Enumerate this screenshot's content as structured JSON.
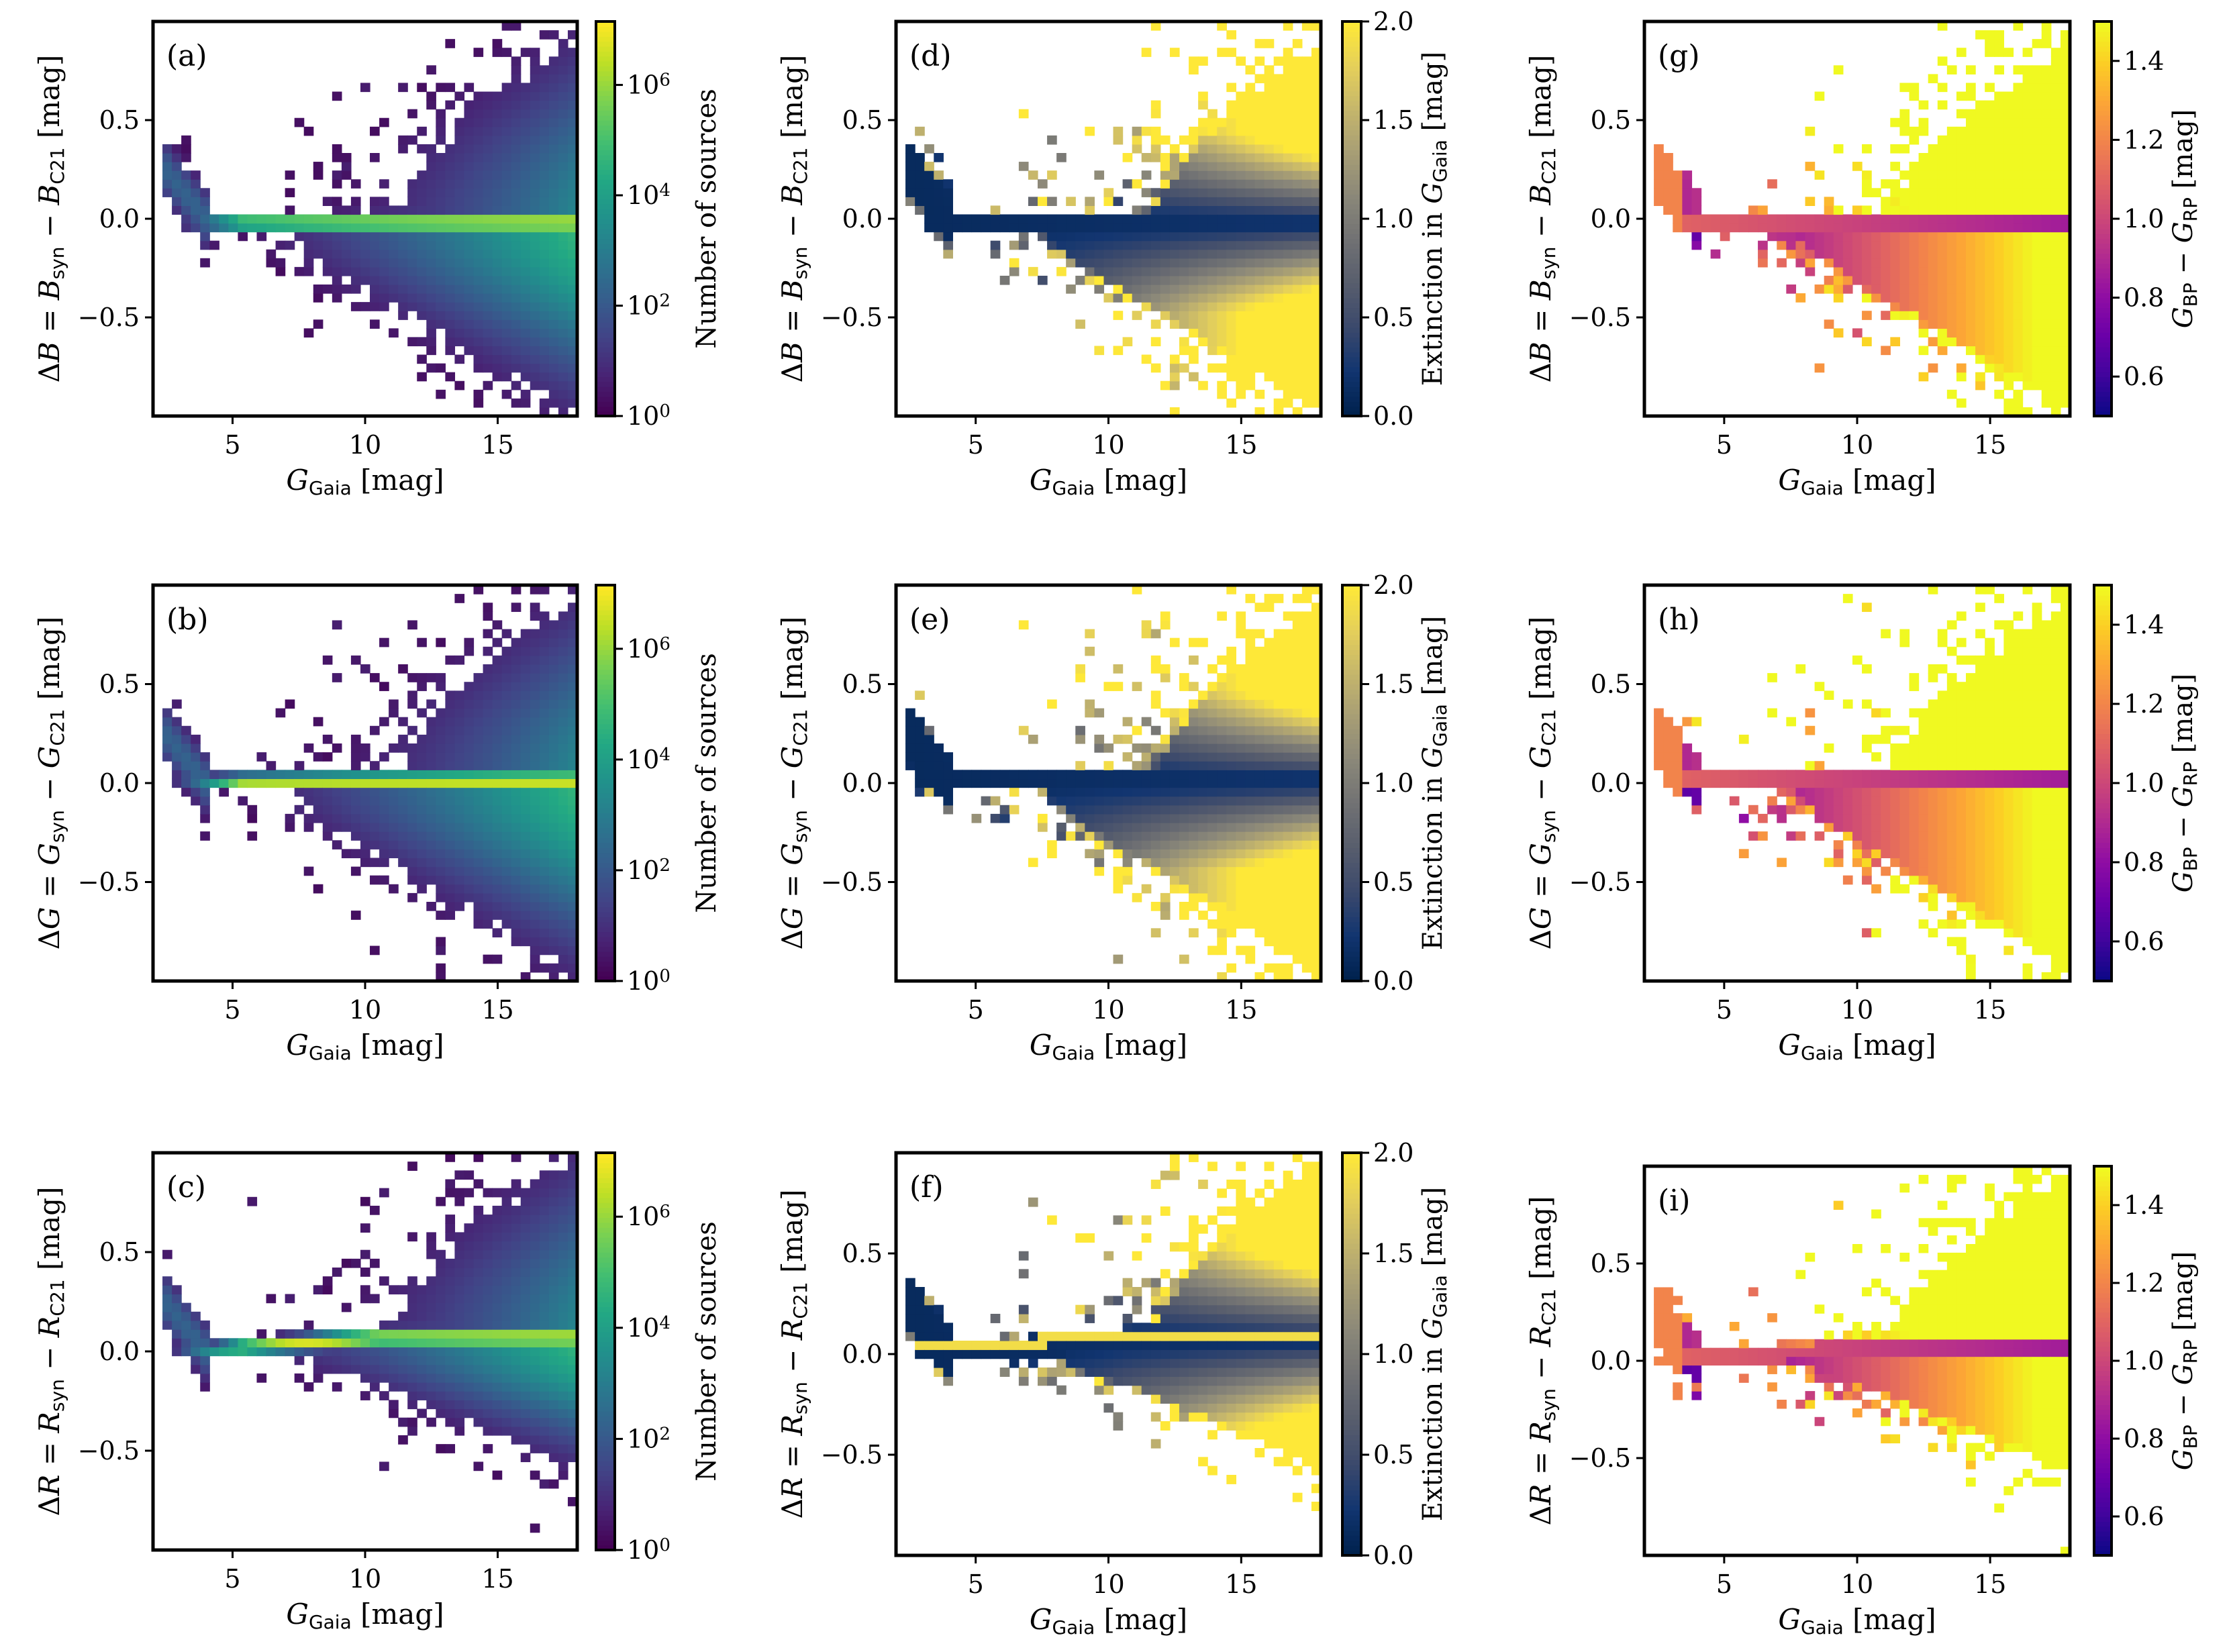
{
  "chart_data": [
    {
      "id": "a",
      "type": "heatmap",
      "panel_label": "(a)",
      "band": "B",
      "xlabel": "G Gaia [mag]",
      "ylabel": "ΔB = B syn − B C21 [mag]",
      "color_by": "count",
      "colorbar": {
        "label": "Number of sources",
        "scale": "log",
        "ticks": [
          "10^0",
          "10^2",
          "10^4",
          "10^6"
        ]
      },
      "xlim": [
        2,
        18
      ],
      "ylim": [
        -1,
        1
      ],
      "xticks": [
        5,
        10,
        15
      ],
      "yticks": [
        -0.5,
        0.0,
        0.5
      ]
    },
    {
      "id": "b",
      "type": "heatmap",
      "panel_label": "(b)",
      "band": "G",
      "xlabel": "G Gaia [mag]",
      "ylabel": "ΔG = G syn − G C21 [mag]",
      "color_by": "count",
      "colorbar": {
        "label": "Number of sources",
        "scale": "log",
        "ticks": [
          "10^0",
          "10^2",
          "10^4",
          "10^6"
        ]
      },
      "xlim": [
        2,
        18
      ],
      "ylim": [
        -1,
        1
      ],
      "xticks": [
        5,
        10,
        15
      ],
      "yticks": [
        -0.5,
        0.0,
        0.5
      ]
    },
    {
      "id": "c",
      "type": "heatmap",
      "panel_label": "(c)",
      "band": "R",
      "xlabel": "G Gaia [mag]",
      "ylabel": "ΔR = R syn − R C21 [mag]",
      "color_by": "count",
      "colorbar": {
        "label": "Number of sources",
        "scale": "log",
        "ticks": [
          "10^0",
          "10^2",
          "10^4",
          "10^6"
        ]
      },
      "xlim": [
        2,
        18
      ],
      "ylim": [
        -1,
        1
      ],
      "xticks": [
        5,
        10,
        15
      ],
      "yticks": [
        -0.5,
        0.0,
        0.5
      ]
    },
    {
      "id": "d",
      "type": "heatmap",
      "panel_label": "(d)",
      "band": "B",
      "xlabel": "G Gaia [mag]",
      "ylabel": "ΔB = B syn − B C21 [mag]",
      "color_by": "extinction",
      "colorbar": {
        "label": "Extinction in G Gaia [mag]",
        "scale": "linear",
        "range": [
          0,
          2
        ],
        "ticks": [
          "0.0",
          "0.5",
          "1.0",
          "1.5",
          "2.0"
        ]
      },
      "xlim": [
        2,
        18
      ],
      "ylim": [
        -1,
        1
      ],
      "xticks": [
        5,
        10,
        15
      ],
      "yticks": [
        -0.5,
        0.0,
        0.5
      ]
    },
    {
      "id": "e",
      "type": "heatmap",
      "panel_label": "(e)",
      "band": "G",
      "xlabel": "G Gaia [mag]",
      "ylabel": "ΔG = G syn − G C21 [mag]",
      "color_by": "extinction",
      "colorbar": {
        "label": "Extinction in G Gaia [mag]",
        "scale": "linear",
        "range": [
          0,
          2
        ],
        "ticks": [
          "0.0",
          "0.5",
          "1.0",
          "1.5",
          "2.0"
        ]
      },
      "xlim": [
        2,
        18
      ],
      "ylim": [
        -1,
        1
      ],
      "xticks": [
        5,
        10,
        15
      ],
      "yticks": [
        -0.5,
        0.0,
        0.5
      ]
    },
    {
      "id": "f",
      "type": "heatmap",
      "panel_label": "(f)",
      "band": "R",
      "xlabel": "G Gaia [mag]",
      "ylabel": "ΔR = R syn − R C21 [mag]",
      "color_by": "extinction",
      "colorbar": {
        "label": "Extinction in G Gaia [mag]",
        "scale": "linear",
        "range": [
          0,
          2
        ],
        "ticks": [
          "0.0",
          "0.5",
          "1.0",
          "1.5",
          "2.0"
        ]
      },
      "xlim": [
        2,
        18
      ],
      "ylim": [
        -1,
        1
      ],
      "xticks": [
        5,
        10,
        15
      ],
      "yticks": [
        -0.5,
        0.0,
        0.5
      ]
    },
    {
      "id": "g",
      "type": "heatmap",
      "panel_label": "(g)",
      "band": "B",
      "xlabel": "G Gaia [mag]",
      "ylabel": "ΔB = B syn − B C21 [mag]",
      "color_by": "bp_rp",
      "colorbar": {
        "label": "G BP − G RP [mag]",
        "scale": "linear",
        "range": [
          0.5,
          1.5
        ],
        "ticks": [
          "0.6",
          "0.8",
          "1.0",
          "1.2",
          "1.4"
        ]
      },
      "xlim": [
        2,
        18
      ],
      "ylim": [
        -1,
        1
      ],
      "xticks": [
        5,
        10,
        15
      ],
      "yticks": [
        -0.5,
        0.0,
        0.5
      ]
    },
    {
      "id": "h",
      "type": "heatmap",
      "panel_label": "(h)",
      "band": "G",
      "xlabel": "G Gaia [mag]",
      "ylabel": "ΔG = G syn − G C21 [mag]",
      "color_by": "bp_rp",
      "colorbar": {
        "label": "G BP − G RP [mag]",
        "scale": "linear",
        "range": [
          0.5,
          1.5
        ],
        "ticks": [
          "0.6",
          "0.8",
          "1.0",
          "1.2",
          "1.4"
        ]
      },
      "xlim": [
        2,
        18
      ],
      "ylim": [
        -1,
        1
      ],
      "xticks": [
        5,
        10,
        15
      ],
      "yticks": [
        -0.5,
        0.0,
        0.5
      ]
    },
    {
      "id": "i",
      "type": "heatmap",
      "panel_label": "(i)",
      "band": "R",
      "xlabel": "G Gaia [mag]",
      "ylabel": "ΔR = R syn − R C21 [mag]",
      "color_by": "bp_rp",
      "colorbar": {
        "label": "G BP − G RP [mag]",
        "scale": "linear",
        "range": [
          0.5,
          1.5
        ],
        "ticks": [
          "0.6",
          "0.8",
          "1.0",
          "1.2",
          "1.4"
        ]
      },
      "xlim": [
        2,
        18
      ],
      "ylim": [
        -1,
        1
      ],
      "xticks": [
        5,
        10,
        15
      ],
      "yticks": [
        -0.5,
        0.0,
        0.5
      ]
    }
  ],
  "colors": {
    "viridis": [
      "#440154",
      "#482475",
      "#414487",
      "#355f8d",
      "#2a788e",
      "#21918c",
      "#22a884",
      "#44bf70",
      "#7ad151",
      "#bddf26",
      "#fde725"
    ],
    "cividis": [
      "#00224e",
      "#123570",
      "#3b496c",
      "#575d6d",
      "#707173",
      "#8a8779",
      "#a69d75",
      "#c4b56c",
      "#e4cf5b",
      "#fee838"
    ],
    "plasma": [
      "#0d0887",
      "#41049d",
      "#6a00a8",
      "#8f0da4",
      "#b12a90",
      "#cc4778",
      "#e16462",
      "#f2844b",
      "#fca636",
      "#fcce25",
      "#f0f921"
    ]
  }
}
